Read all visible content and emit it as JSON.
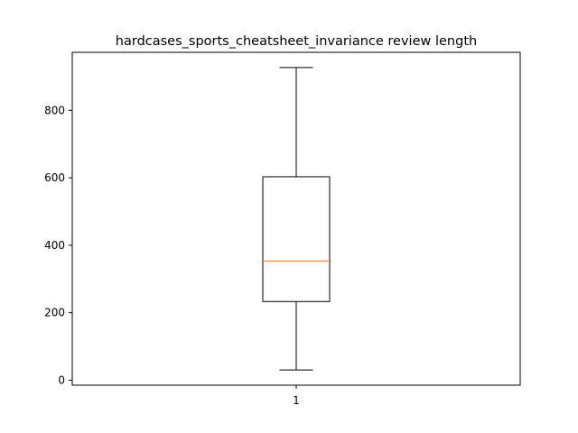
{
  "chart_data": {
    "type": "boxplot",
    "title": "hardcases_sports_cheatsheet_invariance review length",
    "xlabel": "",
    "ylabel": "",
    "categories": [
      "1"
    ],
    "boxes": [
      {
        "label": "1",
        "whisker_low": 30,
        "q1": 233,
        "median": 353,
        "q3": 603,
        "whisker_high": 927
      }
    ],
    "ylim": [
      -15,
      972
    ],
    "yticks": [
      0,
      200,
      400,
      600,
      800
    ],
    "grid": false,
    "colors": {
      "box": "#000000",
      "median": "#ff7f0e"
    }
  }
}
